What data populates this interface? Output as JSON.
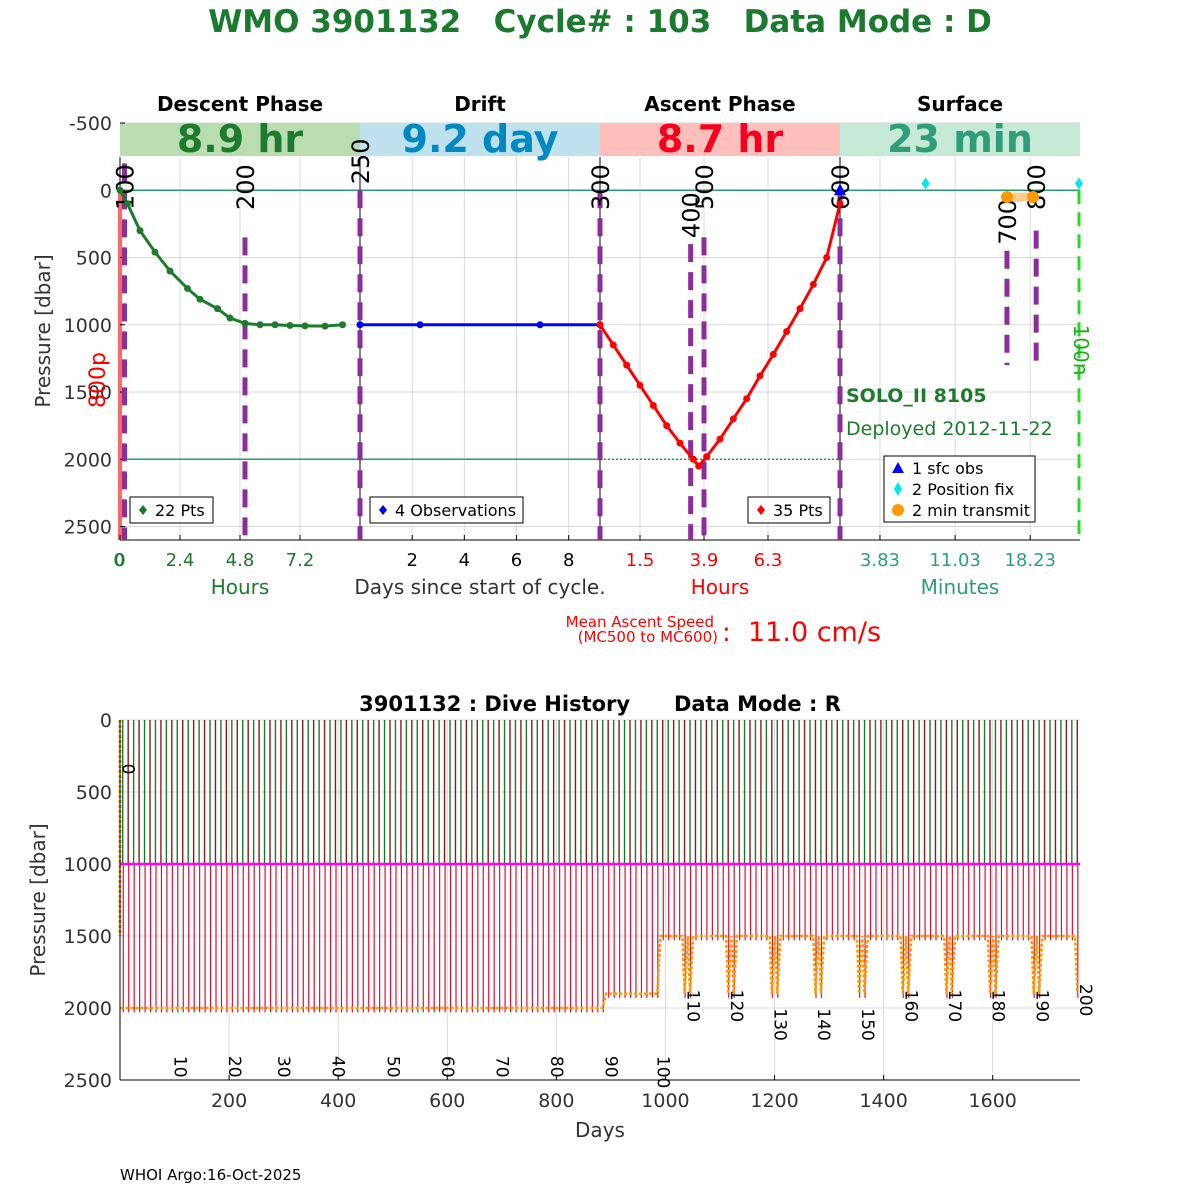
{
  "title": "WMO 3901132   Cycle# : 103   Data Mode : D",
  "footer": "WHOI Argo:16-Oct-2025",
  "colors": {
    "title": "#1a7a2e",
    "descent": "#1e7b2e",
    "drift": "#0000ff",
    "ascent": "#ff0000",
    "surface": "#2e9e78",
    "marker": "#8b2e9b",
    "grid": "#d9d9d9",
    "orange": "#ff9900",
    "cyan": "#00e5ee",
    "ref_line": "#2a9a74"
  },
  "chart_data": [
    {
      "type": "line",
      "name": "cycle-profile",
      "ylabel": "Pressure [dbar]",
      "ylim": [
        2600,
        -500
      ],
      "yticks": [
        "-500",
        "0",
        "500",
        "1000",
        "1500",
        "2000",
        "2500"
      ],
      "ytick_values": [
        -500,
        0,
        500,
        1000,
        1500,
        2000,
        2500
      ],
      "center_xlabel": "Days since start of cycle.",
      "reference_pressures": [
        0,
        2000
      ],
      "panels": [
        {
          "phase": "Descent Phase",
          "duration": "8.9 hr",
          "unit": "Hours",
          "xlim": [
            0,
            9.6
          ],
          "ticks": [
            "0",
            "2.4",
            "4.8",
            "7.2"
          ],
          "tick_values": [
            0,
            2.4,
            4.8,
            7.2
          ],
          "legend": "22 Pts",
          "x": [
            0,
            0.3,
            0.8,
            1.4,
            2.0,
            2.7,
            3.2,
            3.9,
            4.4,
            5.0,
            5.6,
            6.2,
            6.8,
            7.4,
            8.2,
            8.9
          ],
          "y": [
            0,
            100,
            300,
            460,
            600,
            730,
            810,
            880,
            950,
            990,
            1000,
            1000,
            1005,
            1008,
            1010,
            1000
          ]
        },
        {
          "phase": "Drift",
          "duration": "9.2 day",
          "unit": "",
          "xlim": [
            0,
            9.2
          ],
          "ticks": [
            "2",
            "4",
            "6",
            "8"
          ],
          "tick_values": [
            2,
            4,
            6,
            8
          ],
          "legend": "4 Observations",
          "x": [
            0,
            2.3,
            6.9,
            9.2
          ],
          "y": [
            1000,
            1000,
            1000,
            1000
          ]
        },
        {
          "phase": "Ascent Phase",
          "duration": "8.7 hr",
          "unit": "Hours",
          "xlim": [
            0,
            9.0
          ],
          "ticks": [
            "1.5",
            "3.9",
            "6.3"
          ],
          "tick_values": [
            1.5,
            3.9,
            6.3
          ],
          "legend": "35 Pts",
          "x": [
            0,
            0.5,
            1.0,
            1.5,
            2.0,
            2.5,
            3.0,
            3.5,
            3.7,
            4.0,
            4.5,
            5.0,
            5.5,
            6.0,
            6.5,
            7.0,
            7.5,
            8.0,
            8.5,
            9.0
          ],
          "y": [
            1000,
            1150,
            1300,
            1450,
            1600,
            1750,
            1880,
            2000,
            2050,
            1980,
            1850,
            1700,
            1550,
            1380,
            1220,
            1050,
            880,
            700,
            500,
            100
          ]
        },
        {
          "phase": "Surface",
          "duration": "23 min",
          "unit": "Minutes",
          "xlim": [
            0,
            23
          ],
          "ticks": [
            "3.83",
            "11.03",
            "18.23"
          ],
          "tick_values": [
            3.83,
            11.03,
            18.23
          ],
          "legend": [
            "1 sfc obs",
            "2 Position fix",
            "2 min transmit"
          ],
          "position_fix_x": [
            8.2,
            22.9
          ],
          "transmit_x": [
            16.0,
            18.5
          ]
        }
      ],
      "event_markers": [
        {
          "label": "100",
          "panel": 0,
          "x": 0.1,
          "from": -400,
          "to": 2600
        },
        {
          "label": "200",
          "panel": 0,
          "x": 5.0,
          "from": 350,
          "to": 2600
        },
        {
          "label": "250",
          "panel": 1,
          "x": 0.0,
          "from": 0,
          "to": 2600
        },
        {
          "label": "300",
          "panel": 2,
          "x": 0.0,
          "from": 0,
          "to": 2600
        },
        {
          "label": "400",
          "panel": 2,
          "x": 3.4,
          "from": 400,
          "to": 2600
        },
        {
          "label": "500",
          "panel": 2,
          "x": 3.9,
          "from": 350,
          "to": 2600
        },
        {
          "label": "600",
          "panel": 3,
          "x": 0.0,
          "from": 0,
          "to": 2600
        },
        {
          "label": "700",
          "panel": 3,
          "x": 16.0,
          "from": 450,
          "to": 1300
        },
        {
          "label": "800",
          "panel": 3,
          "x": 18.8,
          "from": 300,
          "to": 1300
        }
      ],
      "side_labels": {
        "left": "800p",
        "right": "100n"
      },
      "float_info": {
        "model": "SOLO_II 8105",
        "deployed": "Deployed 2012-11-22"
      },
      "ascent_speed": {
        "label_line1": "Mean Ascent Speed",
        "label_line2": "(MC500 to MC600)",
        "colon": ":",
        "value": "11.0 cm/s"
      }
    },
    {
      "type": "line",
      "name": "dive-history",
      "title": "3901132 : Dive History      Data Mode : R",
      "xlabel": "Days",
      "ylabel": "Pressure [dbar]",
      "xlim": [
        0,
        1760
      ],
      "ylim": [
        2500,
        0
      ],
      "xticks": [
        "200",
        "400",
        "600",
        "800",
        "1000",
        "1200",
        "1400",
        "1600"
      ],
      "xtick_values": [
        200,
        400,
        600,
        800,
        1000,
        1200,
        1400,
        1600
      ],
      "yticks": [
        "0",
        "500",
        "1000",
        "1500",
        "2000",
        "2500"
      ],
      "ytick_values": [
        0,
        500,
        1000,
        1500,
        2000,
        2500
      ],
      "park_pressure": 1000,
      "cycle_interval_days": 10,
      "profile_depths": [
        {
          "from_day": 0,
          "to_day": 890,
          "depth": 2000
        },
        {
          "from_day": 890,
          "to_day": 990,
          "depth": 1900
        },
        {
          "from_day": 990,
          "to_day": 1760,
          "depth": 1500,
          "dip_to": 1900
        }
      ],
      "cycle_labels": [
        {
          "label": "0",
          "day": 5,
          "pressure": 150
        },
        {
          "label": "10",
          "day": 100,
          "pressure": 2180
        },
        {
          "label": "20",
          "day": 200,
          "pressure": 2180
        },
        {
          "label": "30",
          "day": 290,
          "pressure": 2180
        },
        {
          "label": "40",
          "day": 390,
          "pressure": 2180
        },
        {
          "label": "50",
          "day": 490,
          "pressure": 2180
        },
        {
          "label": "60",
          "day": 590,
          "pressure": 2180
        },
        {
          "label": "70",
          "day": 690,
          "pressure": 2180
        },
        {
          "label": "80",
          "day": 790,
          "pressure": 2180
        },
        {
          "label": "90",
          "day": 890,
          "pressure": 2180
        },
        {
          "label": "100",
          "day": 985,
          "pressure": 2180
        },
        {
          "label": "110",
          "day": 1040,
          "pressure": 1720
        },
        {
          "label": "120",
          "day": 1120,
          "pressure": 1720
        },
        {
          "label": "130",
          "day": 1200,
          "pressure": 1850
        },
        {
          "label": "140",
          "day": 1280,
          "pressure": 1850
        },
        {
          "label": "150",
          "day": 1360,
          "pressure": 1850
        },
        {
          "label": "160",
          "day": 1440,
          "pressure": 1720
        },
        {
          "label": "170",
          "day": 1520,
          "pressure": 1720
        },
        {
          "label": "180",
          "day": 1600,
          "pressure": 1720
        },
        {
          "label": "190",
          "day": 1680,
          "pressure": 1720
        },
        {
          "label": "200",
          "day": 1760,
          "pressure": 1680
        }
      ]
    }
  ]
}
